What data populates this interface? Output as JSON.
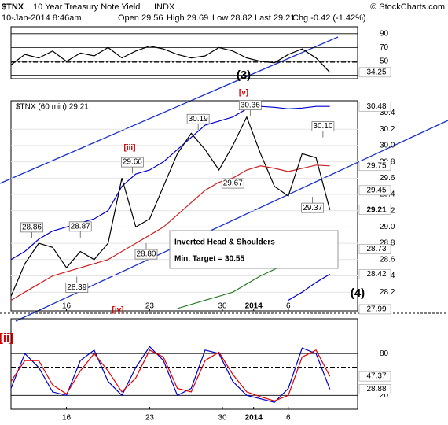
{
  "header": {
    "symbol": "$TNX",
    "name": "10 Year Treasury Note Yield",
    "exchange": "INDX",
    "credit": "© StockCharts.com",
    "date": "10-Jan-2014 8:46am",
    "open": "Open 29.56",
    "high": "High 29.69",
    "low": "Low 28.82",
    "last": "Last 29.21",
    "chg": "Chg -0.42 (-1.42%)"
  },
  "chart_data": [
    {
      "type": "line",
      "x": [
        0,
        4,
        8,
        12,
        16,
        20,
        24,
        28,
        32,
        36,
        40,
        44,
        48,
        52,
        56,
        60,
        64,
        68,
        72,
        76,
        80,
        84,
        88,
        92
      ],
      "series": [
        {
          "color": "#000000",
          "values": [
            45,
            60,
            55,
            65,
            50,
            62,
            58,
            70,
            55,
            65,
            72,
            68,
            60,
            55,
            58,
            70,
            65,
            55,
            50,
            48,
            60,
            68,
            55,
            34.25
          ]
        }
      ],
      "xlim": [
        0,
        100
      ],
      "ylim": [
        25,
        100
      ],
      "yticks": [
        90,
        70,
        50,
        30
      ],
      "markers": [
        34.25
      ],
      "wave_label": "(3)"
    },
    {
      "type": "line",
      "legend": "$TNX (60 min) 29.21",
      "x": [
        0,
        4,
        8,
        12,
        16,
        20,
        24,
        28,
        32,
        36,
        40,
        44,
        48,
        52,
        56,
        60,
        64,
        68,
        72,
        76,
        80,
        84,
        88,
        92
      ],
      "series": [
        {
          "color": "#0000cc",
          "values": [
            28.6,
            28.7,
            28.85,
            28.95,
            29.0,
            29.05,
            29.1,
            29.2,
            29.5,
            29.65,
            29.7,
            29.8,
            29.95,
            30.1,
            30.25,
            30.3,
            30.35,
            30.45,
            30.48,
            30.47,
            30.45,
            30.46,
            30.48,
            30.48
          ]
        },
        {
          "color": "#cc2222",
          "values": [
            28.1,
            28.2,
            28.3,
            28.4,
            28.45,
            28.5,
            28.55,
            28.6,
            28.7,
            28.8,
            28.9,
            29.0,
            29.15,
            29.3,
            29.45,
            29.55,
            29.6,
            29.7,
            29.75,
            29.72,
            29.68,
            29.72,
            29.76,
            29.75
          ]
        },
        {
          "color": "#2e7d2e",
          "values": [
            null,
            null,
            null,
            null,
            null,
            null,
            null,
            null,
            null,
            null,
            null,
            null,
            28.0,
            28.05,
            28.1,
            28.15,
            28.2,
            28.3,
            28.4,
            28.48,
            28.55,
            28.62,
            28.68,
            28.73
          ]
        },
        {
          "color": "#0000cc",
          "values": [
            null,
            null,
            null,
            null,
            null,
            null,
            null,
            null,
            null,
            null,
            null,
            null,
            null,
            null,
            null,
            null,
            null,
            null,
            null,
            null,
            28.1,
            28.2,
            28.32,
            28.42
          ]
        },
        {
          "color": "#000000",
          "values": [
            28.15,
            28.55,
            28.8,
            28.75,
            28.5,
            28.7,
            28.6,
            28.8,
            29.6,
            29.0,
            29.1,
            29.5,
            29.9,
            30.15,
            29.95,
            29.7,
            30.0,
            30.35,
            29.9,
            29.5,
            29.38,
            29.9,
            29.85,
            29.21
          ]
        }
      ],
      "xlim": [
        0,
        100
      ],
      "ylim": [
        27.97,
        30.55
      ],
      "yticks": [
        30.4,
        30.2,
        {
          "value": 30,
          "label": "30.0"
        },
        29.8,
        29.6,
        29.4,
        29.2,
        {
          "value": 29,
          "label": "29.0"
        },
        28.8,
        28.6,
        28.4,
        28.2
      ],
      "xticks": [
        {
          "value": 16,
          "label": "16"
        },
        {
          "value": 40,
          "label": "23"
        },
        {
          "value": 61,
          "label": "30"
        },
        {
          "value": 70,
          "label": "2014"
        },
        {
          "value": 80,
          "label": "6"
        }
      ],
      "markers": [
        30.48,
        29.75,
        29.45,
        29.21,
        28.73,
        28.42,
        27.99
      ],
      "price_labels": [
        28.86,
        28.87,
        30.19,
        29.66,
        29.67,
        30.36,
        {
          "value": 30.1,
          "label": "30.10"
        },
        29.37,
        {
          "value": 28.8,
          "label": "28.80"
        },
        28.39
      ],
      "waves": [
        "[v]",
        "[iii]",
        "[iv]",
        "(4)"
      ],
      "note": [
        "Inverted Head & Shoulders",
        "Min. Target = 30.55"
      ]
    },
    {
      "type": "line",
      "x": [
        0,
        4,
        8,
        12,
        16,
        20,
        24,
        28,
        32,
        36,
        40,
        44,
        48,
        52,
        56,
        60,
        64,
        68,
        72,
        76,
        80,
        84,
        88,
        92
      ],
      "series": [
        {
          "color": "#0000cc",
          "values": [
            30,
            80,
            60,
            25,
            20,
            70,
            85,
            40,
            20,
            60,
            90,
            70,
            20,
            30,
            85,
            80,
            40,
            20,
            15,
            10,
            30,
            88,
            80,
            28.88
          ]
        },
        {
          "color": "#e00000",
          "values": [
            40,
            70,
            70,
            35,
            22,
            55,
            80,
            55,
            25,
            45,
            85,
            75,
            30,
            25,
            70,
            82,
            50,
            25,
            18,
            12,
            20,
            75,
            85,
            47.37
          ]
        }
      ],
      "xlim": [
        0,
        100
      ],
      "ylim": [
        0,
        130
      ],
      "yticks": [
        80,
        20
      ],
      "markers": [
        47.37,
        28.88
      ],
      "xticks": [
        {
          "value": 16,
          "label": "16"
        },
        {
          "value": 40,
          "label": "23"
        },
        {
          "value": 61,
          "label": "30"
        },
        {
          "value": 70,
          "label": "2014"
        },
        {
          "value": 80,
          "label": "6"
        }
      ],
      "wave_label": "[ii]"
    }
  ]
}
